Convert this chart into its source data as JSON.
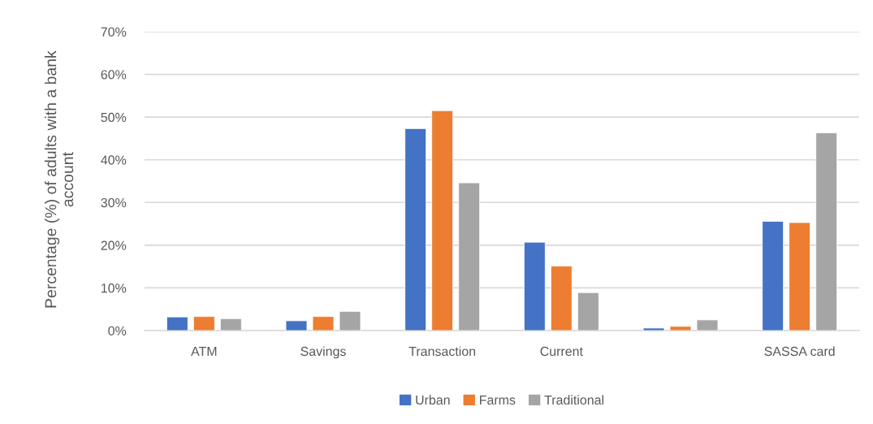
{
  "chart_data": {
    "type": "bar",
    "ylabel": "Percentage (%) of adults with a bank account",
    "categories": [
      "ATM",
      "Savings",
      "Transaction",
      "Current",
      null,
      "SASSA card"
    ],
    "series": [
      {
        "name": "Urban",
        "color": "#4472c4",
        "values": [
          3.2,
          2.3,
          47.3,
          20.7,
          0.6,
          25.6
        ]
      },
      {
        "name": "Farms",
        "color": "#ed7d31",
        "values": [
          3.3,
          3.3,
          51.5,
          15.1,
          1.0,
          25.3
        ]
      },
      {
        "name": "Traditional",
        "color": "#a5a5a5",
        "values": [
          2.8,
          4.5,
          34.6,
          8.9,
          2.5,
          46.3
        ]
      }
    ],
    "ylim": [
      0,
      70
    ],
    "yticks": [
      {
        "value": 0,
        "label": "0%"
      },
      {
        "value": 10,
        "label": "10%"
      },
      {
        "value": 20,
        "label": "20%"
      },
      {
        "value": 30,
        "label": "30%"
      },
      {
        "value": 40,
        "label": "40%"
      },
      {
        "value": 50,
        "label": "50%"
      },
      {
        "value": 60,
        "label": "60%"
      },
      {
        "value": 70,
        "label": "70%"
      }
    ],
    "grid": "y",
    "legend": "bottom"
  }
}
